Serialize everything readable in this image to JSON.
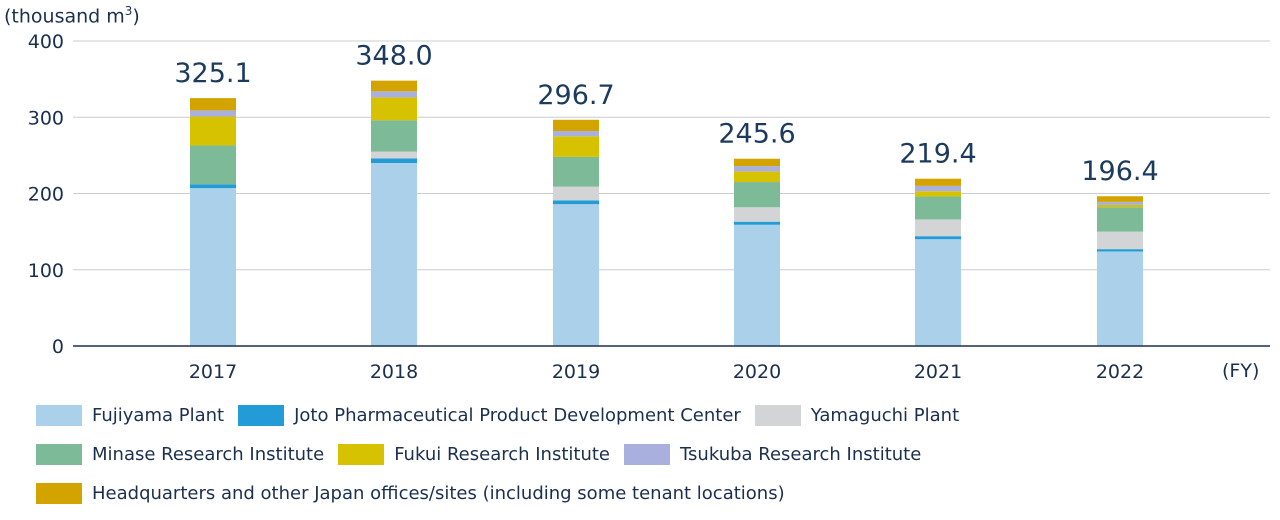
{
  "chart_data": {
    "type": "bar",
    "stacked": true,
    "unit_label_prefix": "(thousand m",
    "unit_label_sup": "3",
    "unit_label_suffix": ")",
    "x_unit_label": "(FY)",
    "categories": [
      "2017",
      "2018",
      "2019",
      "2020",
      "2021",
      "2022"
    ],
    "totals": [
      "325.1",
      "348.0",
      "296.7",
      "245.6",
      "219.4",
      "196.4"
    ],
    "ylim": [
      0,
      400
    ],
    "yticks": [
      0,
      100,
      200,
      300,
      400
    ],
    "grid": true,
    "legend_position": "bottom",
    "series": [
      {
        "name": "Fujiyama Plant",
        "color": "#abd1ea",
        "values": [
          207,
          240,
          186,
          159,
          140,
          124
        ]
      },
      {
        "name": "Joto Pharmaceutical Product Development Center",
        "color": "#229bd7",
        "values": [
          5,
          6,
          5,
          4,
          4,
          3
        ]
      },
      {
        "name": "Yamaguchi Plant",
        "color": "#d2d4d5",
        "values": [
          0,
          9,
          18,
          19,
          22,
          23
        ]
      },
      {
        "name": "Minase Research Institute",
        "color": "#7dba98",
        "values": [
          51,
          41,
          39,
          33,
          30,
          32
        ]
      },
      {
        "name": "Fukui Research Institute",
        "color": "#d6c200",
        "values": [
          38,
          30,
          27,
          14,
          7,
          3
        ]
      },
      {
        "name": "Tsukuba Research Institute",
        "color": "#aab0de",
        "values": [
          8,
          8,
          7,
          7,
          7,
          4
        ]
      },
      {
        "name": "Headquarters and other Japan offices/sites (including some tenant locations)",
        "color": "#d3a400",
        "values": [
          16.1,
          14,
          14.7,
          9.6,
          9.4,
          7.4
        ]
      }
    ]
  }
}
